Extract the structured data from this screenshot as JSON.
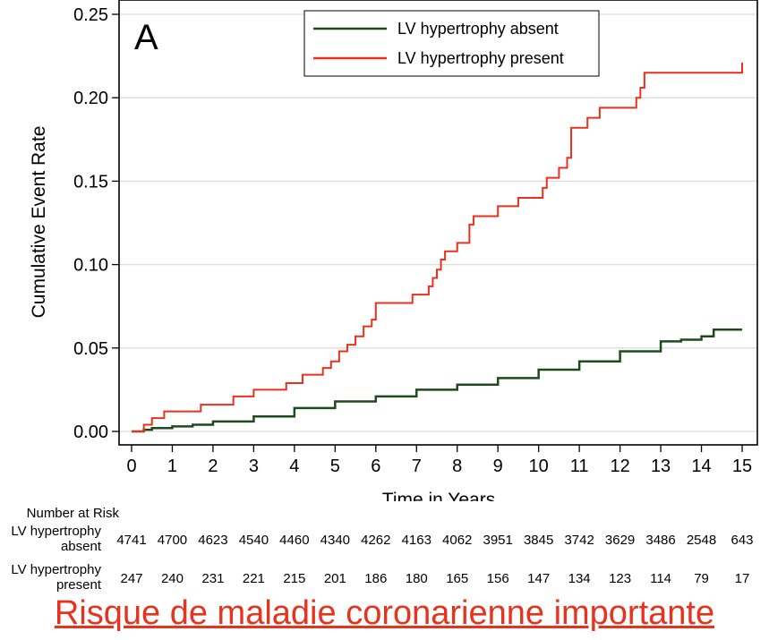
{
  "panel_label": "A",
  "colors": {
    "absent": "#1f4a1c",
    "present": "#e8321e",
    "footer": "#e8321e"
  },
  "chart_data": {
    "type": "line",
    "xlabel": "Time in Years",
    "ylabel": "Cumulative Event Rate",
    "xlim": [
      0,
      15
    ],
    "ylim": [
      0,
      0.25
    ],
    "xticks": [
      "0",
      "1",
      "2",
      "3",
      "4",
      "5",
      "6",
      "7",
      "8",
      "9",
      "10",
      "11",
      "12",
      "13",
      "14",
      "15"
    ],
    "yticks": [
      "0.00",
      "0.05",
      "0.10",
      "0.15",
      "0.20",
      "0.25"
    ],
    "grid": "horizontal",
    "legend_position": "top-right",
    "series": [
      {
        "name": "LV hypertrophy absent",
        "color": "#1f4a1c",
        "x": [
          0,
          0.3,
          0.5,
          1,
          1.5,
          2,
          3,
          4,
          5,
          6,
          7,
          8,
          9,
          10,
          11,
          12,
          13,
          13.5,
          14,
          14.3,
          15
        ],
        "y": [
          0,
          0.001,
          0.002,
          0.003,
          0.004,
          0.006,
          0.009,
          0.014,
          0.018,
          0.021,
          0.025,
          0.028,
          0.032,
          0.037,
          0.042,
          0.048,
          0.054,
          0.055,
          0.057,
          0.061,
          0.061
        ]
      },
      {
        "name": "LV hypertrophy present",
        "color": "#e8321e",
        "x": [
          0,
          0.3,
          0.5,
          0.8,
          1.7,
          2.5,
          3.0,
          3.8,
          4.2,
          4.7,
          4.9,
          5.1,
          5.3,
          5.5,
          5.7,
          5.9,
          6.0,
          6.9,
          7.3,
          7.4,
          7.5,
          7.6,
          7.7,
          8.0,
          8.3,
          8.4,
          9.0,
          9.5,
          9.6,
          10.1,
          10.2,
          10.5,
          10.7,
          10.8,
          11.2,
          11.5,
          12.4,
          12.5,
          12.6,
          15
        ],
        "y": [
          0,
          0.004,
          0.008,
          0.012,
          0.016,
          0.021,
          0.025,
          0.029,
          0.034,
          0.038,
          0.042,
          0.048,
          0.052,
          0.057,
          0.063,
          0.067,
          0.077,
          0.082,
          0.087,
          0.092,
          0.097,
          0.103,
          0.108,
          0.113,
          0.124,
          0.129,
          0.135,
          0.14,
          0.14,
          0.146,
          0.152,
          0.158,
          0.164,
          0.182,
          0.188,
          0.194,
          0.2,
          0.206,
          0.215,
          0.221
        ]
      }
    ]
  },
  "risk_table": {
    "title": "Number at Risk",
    "rows": [
      {
        "label1": "LV hypertrophy",
        "label2": "absent",
        "values": [
          "4741",
          "4700",
          "4623",
          "4540",
          "4460",
          "4340",
          "4262",
          "4163",
          "4062",
          "3951",
          "3845",
          "3742",
          "3629",
          "3486",
          "2548",
          "643"
        ]
      },
      {
        "label1": "LV hypertrophy",
        "label2": "present",
        "values": [
          "247",
          "240",
          "231",
          "221",
          "215",
          "201",
          "186",
          "180",
          "165",
          "156",
          "147",
          "134",
          "123",
          "114",
          "79",
          "17"
        ]
      }
    ]
  },
  "footer_text": "Risque de maladie coronarienne importante"
}
